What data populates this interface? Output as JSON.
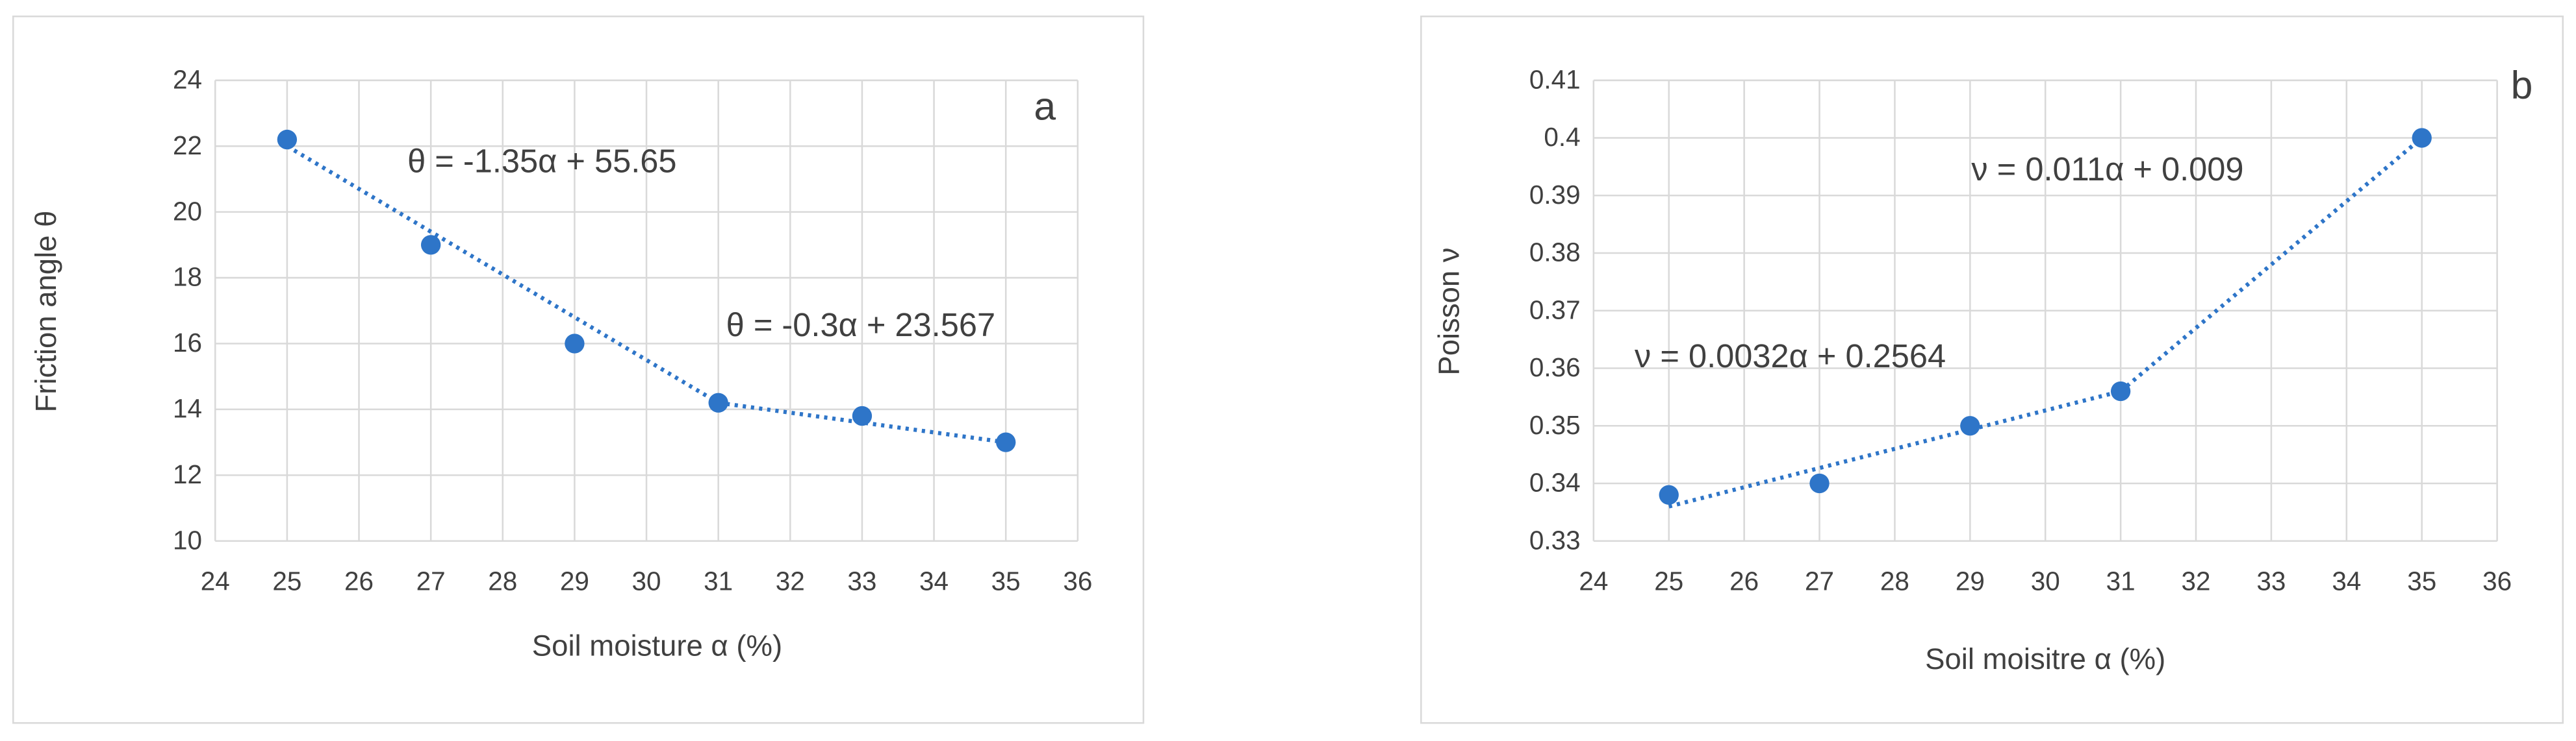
{
  "chart_data": [
    {
      "type": "scatter",
      "panel": "a",
      "x_label": "Soil moisture α (%)",
      "y_label": "Friction angle θ",
      "xlim": [
        24,
        36
      ],
      "xticks": [
        24,
        25,
        26,
        27,
        28,
        29,
        30,
        31,
        32,
        33,
        34,
        35,
        36
      ],
      "ylim": [
        10,
        24
      ],
      "yticks": [
        10,
        12,
        14,
        16,
        18,
        20,
        22,
        24
      ],
      "grid": true,
      "points": {
        "color": "#2e75c8",
        "x": [
          25,
          27,
          29,
          31,
          33,
          35
        ],
        "values": [
          22.2,
          19,
          16,
          14.2,
          13.8,
          13
        ]
      },
      "trendlines": [
        {
          "x": [
            25,
            31
          ],
          "values": [
            22,
            14.2
          ]
        },
        {
          "x": [
            31,
            35
          ],
          "values": [
            14.2,
            13
          ]
        }
      ],
      "annotations": [
        "θ = -1.35α + 55.65",
        "θ = -0.3α + 23.567"
      ]
    },
    {
      "type": "scatter",
      "panel": "b",
      "x_label": "Soil moisitre α (%)",
      "y_label": "Poisson ν",
      "xlim": [
        24,
        36
      ],
      "xticks": [
        24,
        25,
        26,
        27,
        28,
        29,
        30,
        31,
        32,
        33,
        34,
        35,
        36
      ],
      "ylim": [
        0.33,
        0.41
      ],
      "yticks": [
        0.33,
        0.34,
        0.35,
        0.36,
        0.37,
        0.38,
        0.39,
        0.4,
        0.41
      ],
      "grid": true,
      "points": {
        "color": "#2e75c8",
        "x": [
          25,
          27,
          29,
          31,
          35
        ],
        "values": [
          0.338,
          0.34,
          0.35,
          0.356,
          0.4
        ]
      },
      "trendlines": [
        {
          "x": [
            25,
            31
          ],
          "values": [
            0.336,
            0.356
          ]
        },
        {
          "x": [
            31,
            35
          ],
          "values": [
            0.356,
            0.4
          ]
        }
      ],
      "annotations": [
        "ν = 0.0032α + 0.2564",
        "ν = 0.011α + 0.009"
      ]
    }
  ]
}
